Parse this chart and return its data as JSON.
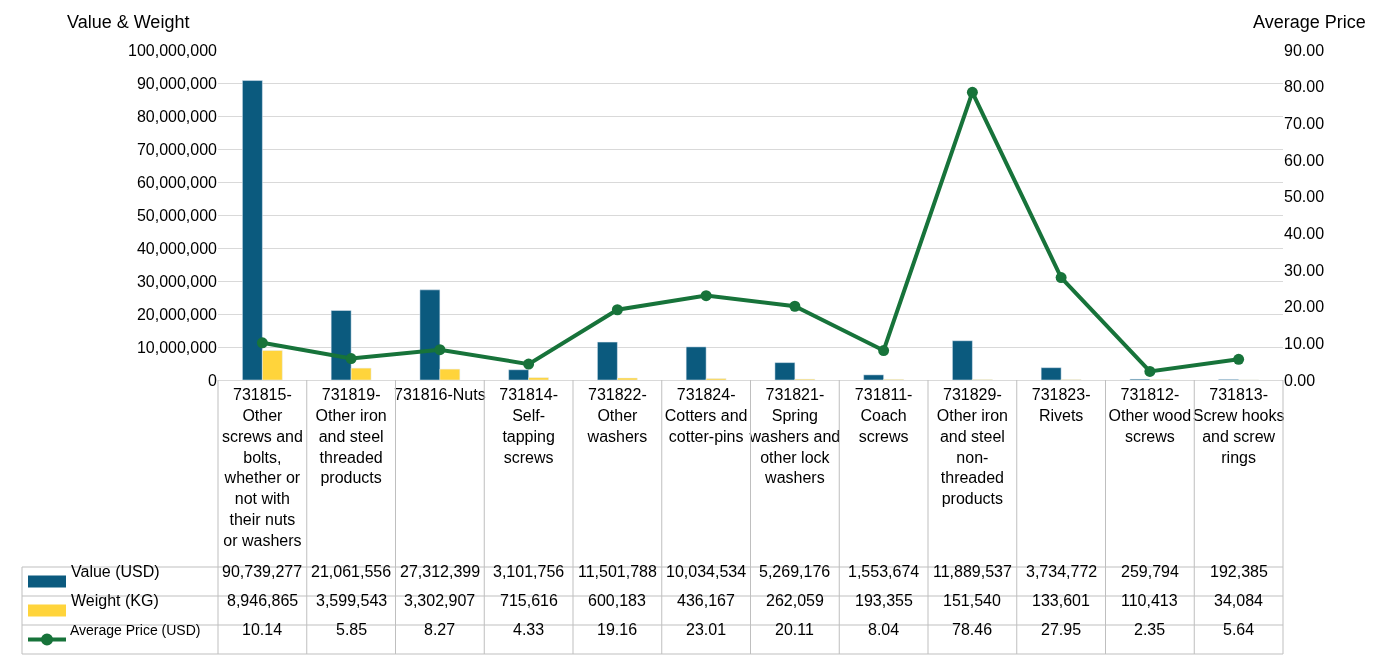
{
  "chart_data": {
    "type": "bar",
    "ylabel": "Value & Weight",
    "y2label": "Average Price",
    "categories": [
      "731815-Other screws and bolts, whether or not with their nuts or washers",
      "731819-Other iron and steel threaded products",
      "731816-Nuts",
      "731814-Self-tapping screws",
      "731822-Other washers",
      "731824-Cotters and cotter-pins",
      "731821-Spring washers and other lock washers",
      "731811-Coach screws",
      "731829-Other iron and steel non-threaded products",
      "731823-Rivets",
      "731812-Other wood screws",
      "731813-Screw hooks and screw rings"
    ],
    "series": [
      {
        "name": "Value (USD)",
        "color": "#0b5a7e",
        "values": [
          90739277,
          21061556,
          27312399,
          3101756,
          11501788,
          10034534,
          5269176,
          1553674,
          11889537,
          3734772,
          259794,
          192385
        ],
        "value_labels": [
          "90,739,277",
          "21,061,556",
          "27,312,399",
          "3,101,756",
          "11,501,788",
          "10,034,534",
          "5,269,176",
          "1,553,674",
          "11,889,537",
          "3,734,772",
          "259,794",
          "192,385"
        ]
      },
      {
        "name": "Weight (KG)",
        "color": "#ffd43b",
        "values": [
          8946865,
          3599543,
          3302907,
          715616,
          600183,
          436167,
          262059,
          193355,
          151540,
          133601,
          110413,
          34084
        ],
        "value_labels": [
          "8,946,865",
          "3,599,543",
          "3,302,907",
          "715,616",
          "600,183",
          "436,167",
          "262,059",
          "193,355",
          "151,540",
          "133,601",
          "110,413",
          "34,084"
        ]
      },
      {
        "name": "Average Price (USD)",
        "type": "line",
        "axis": "y2",
        "color": "#17733a",
        "marker": "circle",
        "values": [
          10.14,
          5.85,
          8.27,
          4.33,
          19.16,
          23.01,
          20.11,
          8.04,
          78.46,
          27.95,
          2.35,
          5.64
        ],
        "value_labels": [
          "10.14",
          "5.85",
          "8.27",
          "4.33",
          "19.16",
          "23.01",
          "20.11",
          "8.04",
          "78.46",
          "27.95",
          "2.35",
          "5.64"
        ]
      }
    ],
    "ylim": [
      0,
      100000000
    ],
    "yticks": [
      0,
      {
        "value": 10000000,
        "label": "10,000,000"
      },
      {
        "value": 20000000,
        "label": "20,000,000"
      },
      {
        "value": 30000000,
        "label": "30,000,000"
      },
      {
        "value": 40000000,
        "label": "40,000,000"
      },
      {
        "value": 50000000,
        "label": "50,000,000"
      },
      {
        "value": 60000000,
        "label": "60,000,000"
      },
      {
        "value": 70000000,
        "label": "70,000,000"
      },
      {
        "value": 80000000,
        "label": "80,000,000"
      },
      {
        "value": 90000000,
        "label": "90,000,000"
      },
      {
        "value": 100000000,
        "label": "100,000,000"
      }
    ],
    "y2lim": [
      0,
      90
    ],
    "y2ticks": [
      {
        "value": 0,
        "label": "0.00"
      },
      {
        "value": 10,
        "label": "10.00"
      },
      {
        "value": 20,
        "label": "20.00"
      },
      {
        "value": 30,
        "label": "30.00"
      },
      {
        "value": 40,
        "label": "40.00"
      },
      {
        "value": 50,
        "label": "50.00"
      },
      {
        "value": 60,
        "label": "60.00"
      },
      {
        "value": 70,
        "label": "70.00"
      },
      {
        "value": 80,
        "label": "80.00"
      },
      {
        "value": 90,
        "label": "90.00"
      }
    ],
    "grid": "y",
    "legend": "bottom"
  }
}
